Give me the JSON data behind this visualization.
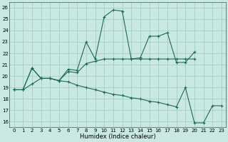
{
  "title": "",
  "xlabel": "Humidex (Indice chaleur)",
  "background_color": "#c8e8e0",
  "grid_color": "#a0c8c0",
  "line_color": "#1a6b5a",
  "xlim": [
    -0.5,
    23.5
  ],
  "ylim": [
    15.5,
    26.5
  ],
  "yticks": [
    16,
    17,
    18,
    19,
    20,
    21,
    22,
    23,
    24,
    25,
    26
  ],
  "xticks": [
    0,
    1,
    2,
    3,
    4,
    5,
    6,
    7,
    8,
    9,
    10,
    11,
    12,
    13,
    14,
    15,
    16,
    17,
    18,
    19,
    20,
    21,
    22,
    23
  ],
  "line1_y": [
    18.8,
    18.8,
    20.7,
    19.8,
    19.8,
    19.6,
    20.6,
    20.5,
    23.0,
    21.5,
    25.2,
    25.8,
    25.7,
    21.5,
    21.6,
    23.5,
    23.5,
    23.8,
    21.2,
    21.2,
    22.1,
    null,
    null,
    null
  ],
  "line2_y": [
    18.8,
    18.8,
    20.7,
    19.8,
    19.8,
    19.6,
    20.4,
    20.3,
    21.1,
    21.3,
    21.5,
    21.5,
    21.5,
    21.5,
    21.5,
    21.5,
    21.5,
    21.5,
    21.5,
    21.5,
    21.5,
    null,
    null,
    null
  ],
  "line3_y": [
    18.8,
    18.8,
    19.3,
    19.8,
    19.8,
    19.6,
    19.5,
    19.2,
    19.0,
    18.8,
    18.6,
    18.4,
    18.3,
    18.1,
    18.0,
    17.8,
    17.7,
    17.5,
    17.3,
    19.0,
    15.9,
    15.9,
    17.4,
    17.4
  ]
}
